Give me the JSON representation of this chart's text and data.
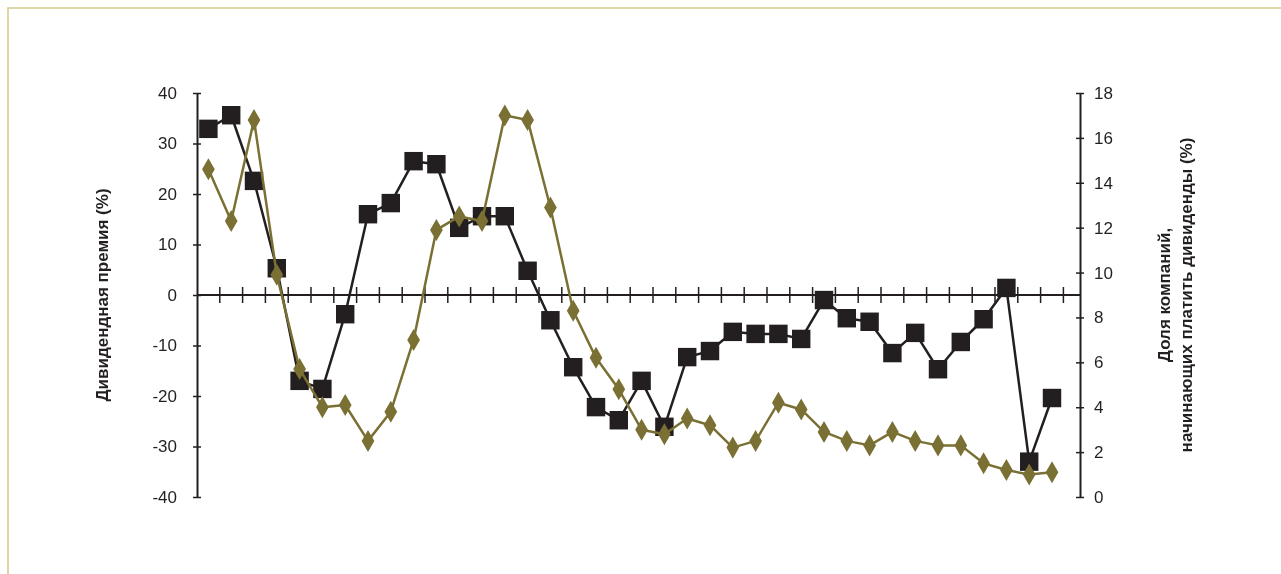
{
  "chart_data": {
    "type": "line",
    "ylabel": "Дивидендная премия (%)",
    "y2label": "Доля компаний,\nначинающих платить дивиденды (%)",
    "categories": [
      null,
      null,
      null,
      null,
      null,
      null,
      null,
      null,
      null,
      null,
      null,
      null,
      null,
      null,
      null,
      null,
      null,
      null,
      null,
      null,
      null,
      null,
      null,
      null,
      null,
      null,
      null,
      null,
      null,
      null,
      null,
      null,
      null,
      null,
      null,
      null,
      null,
      null
    ],
    "ylim": [
      -40,
      40
    ],
    "yticks": [
      -40,
      -30,
      -20,
      -10,
      0,
      10,
      20,
      30,
      40
    ],
    "y2lim": [
      0,
      18
    ],
    "y2ticks": [
      0,
      2,
      4,
      6,
      8,
      10,
      12,
      14,
      16,
      18
    ],
    "series": [
      {
        "color": "#231f20",
        "marker": "square",
        "values": [
          32.9,
          35.6,
          22.6,
          5.3,
          -17,
          -18.6,
          -3.8,
          16,
          18.2,
          26.5,
          25.9,
          13.3,
          15.6,
          15.6,
          4.8,
          -5,
          -14.3,
          -22.2,
          -24.8,
          -17,
          -26.1,
          -12.3,
          -11.1,
          -7.3,
          -7.7,
          -7.7,
          -8.7,
          -1,
          -4.6,
          -5.3,
          -11.5,
          -7.5,
          -14.7,
          -9.3,
          -4.8,
          1.4,
          -33,
          -20.4
        ]
      },
      {
        "color": "#7a7034",
        "marker": "diamond",
        "axis": "y2",
        "values": [
          14.6,
          12.3,
          16.8,
          9.9,
          5.7,
          4.0,
          4.1,
          2.5,
          3.8,
          7.0,
          11.9,
          12.5,
          12.3,
          17.0,
          16.8,
          12.9,
          8.3,
          6.2,
          4.8,
          3.0,
          2.8,
          3.5,
          3.2,
          2.2,
          2.5,
          4.2,
          3.9,
          2.9,
          2.5,
          2.3,
          2.9,
          2.5,
          2.3,
          2.3,
          1.5,
          1.2,
          1.0,
          1.1
        ]
      }
    ]
  }
}
